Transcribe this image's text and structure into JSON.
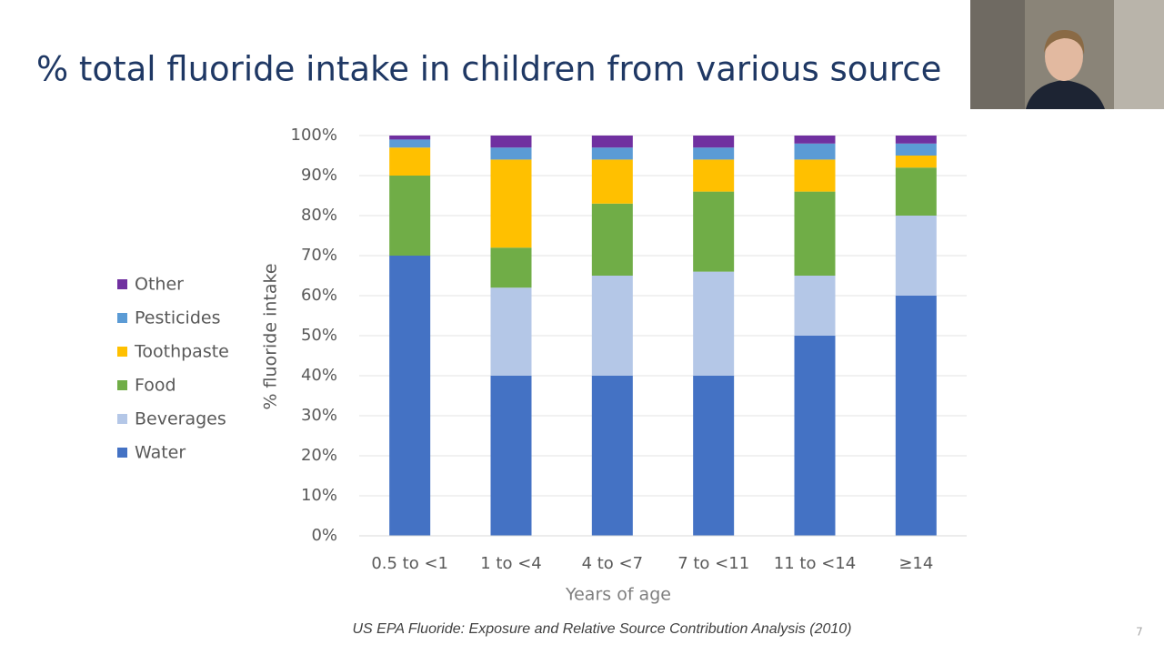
{
  "chart_data": {
    "type": "stacked_bar",
    "title": "% total fluoride intake in children from various source",
    "categories": [
      "0.5 to <1",
      "1 to <4",
      "4 to <7",
      "7 to <11",
      "11 to <14",
      "≥14"
    ],
    "series": [
      {
        "name": "Water",
        "color": "#4472c4",
        "values": [
          70,
          40,
          40,
          40,
          50,
          60
        ]
      },
      {
        "name": "Beverages",
        "color": "#b4c7e7",
        "values": [
          0,
          22,
          25,
          26,
          15,
          20
        ]
      },
      {
        "name": "Food",
        "color": "#70ad47",
        "values": [
          20,
          10,
          18,
          20,
          21,
          12
        ]
      },
      {
        "name": "Toothpaste",
        "color": "#ffc000",
        "values": [
          7,
          22,
          11,
          8,
          8,
          3
        ]
      },
      {
        "name": "Pesticides",
        "color": "#5b9bd5",
        "values": [
          2,
          3,
          3,
          3,
          4,
          3
        ]
      },
      {
        "name": "Other",
        "color": "#7030a0",
        "values": [
          1,
          3,
          3,
          3,
          2,
          2
        ]
      }
    ],
    "ylim": [
      0,
      100
    ],
    "yticks": [
      {
        "value": 0,
        "label": "0%"
      },
      {
        "value": 10,
        "label": "10%"
      },
      {
        "value": 20,
        "label": "20%"
      },
      {
        "value": 30,
        "label": "30%"
      },
      {
        "value": 40,
        "label": "40%"
      },
      {
        "value": 50,
        "label": "50%"
      },
      {
        "value": 60,
        "label": "60%"
      },
      {
        "value": 70,
        "label": "70%"
      },
      {
        "value": 80,
        "label": "80%"
      },
      {
        "value": 90,
        "label": "90%"
      },
      {
        "value": 100,
        "label": "100%"
      }
    ],
    "grid": true,
    "y_label": "% fluoride intake",
    "x_label": "Years of age",
    "source": "US EPA Fluoride: Exposure and Relative Source Contribution Analysis (2010)",
    "page_number": "7",
    "legend": "left"
  }
}
